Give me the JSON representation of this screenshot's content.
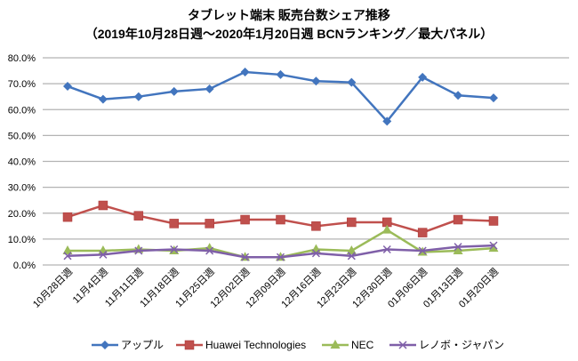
{
  "chart_data": {
    "type": "line",
    "title": "タブレット端末 販売台数シェア推移",
    "subtitle": "（2019年10月28日週～2020年1月20日週 BCNランキング／最大パネル）",
    "xlabel": "",
    "ylabel": "",
    "ylim": [
      0,
      80
    ],
    "yticks": [
      "0.0%",
      "10.0%",
      "20.0%",
      "30.0%",
      "40.0%",
      "50.0%",
      "60.0%",
      "70.0%",
      "80.0%"
    ],
    "grid": true,
    "legend_position": "bottom",
    "categories": [
      "10月28日週",
      "11月4日週",
      "11月11日週",
      "11月18日週",
      "11月25日週",
      "12月02日週",
      "12月09日週",
      "12月16日週",
      "12月23日週",
      "12月30日週",
      "01月06日週",
      "01月13日週",
      "01月20日週"
    ],
    "series": [
      {
        "name": "アップル",
        "color": "#4275BE",
        "marker": "diamond",
        "values": [
          69.0,
          64.0,
          65.0,
          67.0,
          68.0,
          74.5,
          73.5,
          71.0,
          70.5,
          55.5,
          72.5,
          65.5,
          64.5
        ]
      },
      {
        "name": "Huawei Technologies",
        "color": "#C0504D",
        "marker": "square",
        "values": [
          18.5,
          23.0,
          19.0,
          16.0,
          16.0,
          17.5,
          17.5,
          15.0,
          16.5,
          16.5,
          12.5,
          17.5,
          17.0
        ]
      },
      {
        "name": "NEC",
        "color": "#9BBB59",
        "marker": "triangle",
        "values": [
          5.5,
          5.5,
          6.0,
          5.5,
          6.5,
          3.0,
          3.0,
          6.0,
          5.5,
          13.5,
          5.0,
          5.5,
          6.5
        ]
      },
      {
        "name": "レノボ・ジャパン",
        "color": "#7F5FA8",
        "marker": "x",
        "values": [
          3.5,
          4.0,
          5.5,
          6.0,
          5.5,
          3.0,
          3.0,
          4.5,
          3.5,
          6.0,
          5.5,
          7.0,
          7.5
        ]
      }
    ]
  }
}
